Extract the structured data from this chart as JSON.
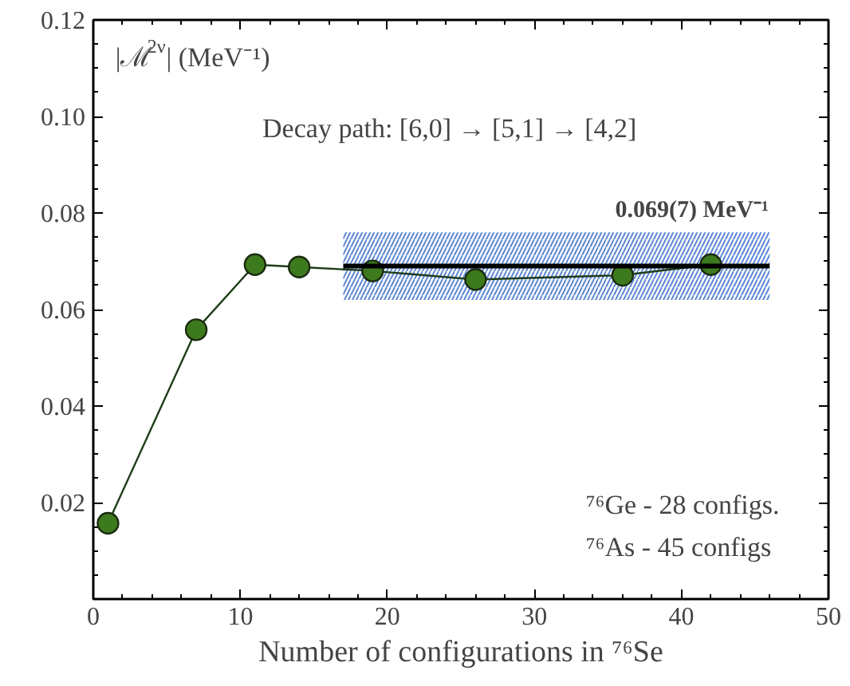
{
  "chart_data": {
    "type": "line",
    "xlabel": "Number of configurations in ⁷⁶Se",
    "ylabel": "|ℳ$^{2ν}$| (MeV⁻¹)",
    "annotations": [
      "Decay path: [6,0] → [5,1] → [4,2]",
      "0.069(7) MeV⁻¹",
      "⁷⁶Ge - 28 configs.",
      "⁷⁶As - 45 configs"
    ],
    "series": [
      {
        "color": "#3d7a1e",
        "marker": "circle",
        "x": [
          1,
          7,
          11,
          14,
          19,
          26,
          36,
          42
        ],
        "values": [
          0.0157,
          0.0558,
          0.0693,
          0.0688,
          0.068,
          0.0662,
          0.0671,
          0.0693
        ]
      },
      {
        "color": "#000000",
        "marker": "none",
        "x": [
          17,
          46
        ],
        "values": [
          0.069,
          0.069
        ],
        "lower": [
          0.062,
          0.062
        ],
        "upper": [
          0.076,
          0.076
        ]
      }
    ],
    "xlim": [
      0,
      50
    ],
    "ylim": [
      0,
      0.12
    ],
    "xticks": [
      0,
      10,
      20,
      30,
      40,
      50
    ],
    "yticks": [
      {
        "value": 0,
        "label": null
      },
      0.02,
      0.04,
      0.06,
      0.08,
      {
        "value": 0.1,
        "label": "0.10"
      },
      0.12
    ],
    "grid": false
  }
}
